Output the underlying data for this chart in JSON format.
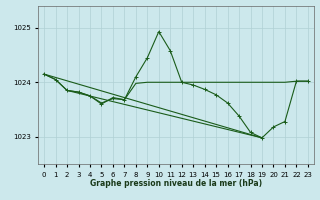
{
  "background_color": "#cce8ec",
  "grid_color": "#b0d0d5",
  "line_color": "#1a5c1a",
  "title": "Graphe pression niveau de la mer (hPa)",
  "xlim": [
    -0.5,
    23.5
  ],
  "ylim": [
    1022.5,
    1025.4
  ],
  "yticks": [
    1023,
    1024,
    1025
  ],
  "xticks": [
    0,
    1,
    2,
    3,
    4,
    5,
    6,
    7,
    8,
    9,
    10,
    11,
    12,
    13,
    14,
    15,
    16,
    17,
    18,
    19,
    20,
    21,
    22,
    23
  ],
  "line1_x": [
    0,
    1,
    2,
    3,
    4,
    5,
    6,
    7,
    8,
    9,
    10,
    11,
    12,
    13,
    14,
    15,
    16,
    17,
    18,
    19,
    20,
    21,
    22,
    23
  ],
  "line1_y": [
    1024.15,
    1024.05,
    1023.85,
    1023.82,
    1023.75,
    1023.6,
    1023.72,
    1023.68,
    1024.1,
    1024.45,
    1024.93,
    1024.58,
    1024.0,
    1023.95,
    1023.87,
    1023.77,
    1023.62,
    1023.38,
    1023.08,
    1022.98,
    1023.18,
    1023.28,
    1024.02,
    1024.02
  ],
  "line2_x": [
    0,
    1,
    2,
    3,
    4,
    5,
    6,
    7,
    14,
    19,
    22,
    23
  ],
  "line2_y": [
    1024.15,
    1024.05,
    1023.85,
    1023.82,
    1023.75,
    1023.6,
    1023.72,
    1023.68,
    1023.87,
    1022.98,
    1024.02,
    1024.02
  ],
  "line3_x": [
    0,
    19
  ],
  "line3_y": [
    1024.15,
    1022.98
  ],
  "line4_x": [
    2,
    19
  ],
  "line4_y": [
    1023.85,
    1022.98
  ]
}
